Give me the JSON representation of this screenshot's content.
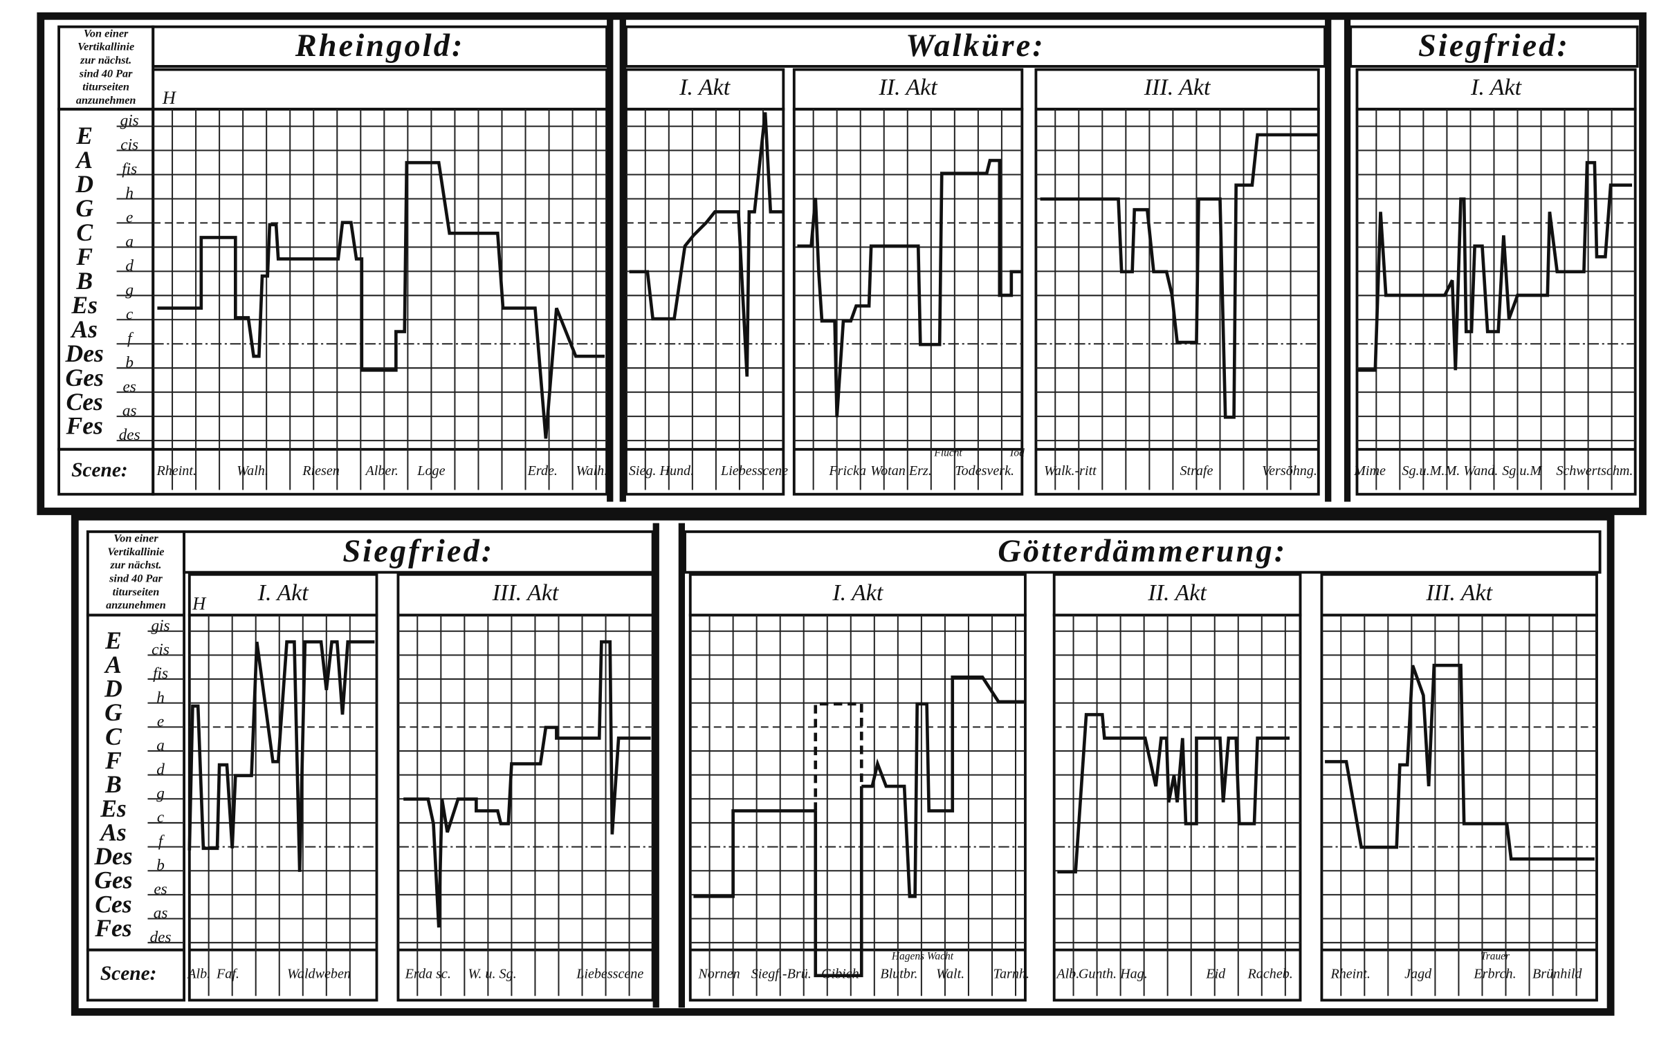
{
  "panels": [
    {
      "note": [
        "Von einer",
        "Vertikallinie",
        "zur nächst.",
        "sind 40 Par",
        "titurseiten",
        "anzunehmen"
      ],
      "h_label": "H",
      "scene_label": "Scene:",
      "keys": [
        "E",
        "A",
        "D",
        "G",
        "C",
        "F",
        "B",
        "Es",
        "As",
        "Des",
        "Ges",
        "Ces",
        "Fes"
      ],
      "pitches": [
        "gis",
        "cis",
        "fis",
        "h",
        "e",
        "a",
        "d",
        "g",
        "c",
        "f",
        "b",
        "es",
        "as",
        "des"
      ],
      "works": [
        "Rheingold:",
        "Walküre:",
        "Siegfried:"
      ],
      "acts": [
        "I. Akt",
        "II. Akt",
        "III. Akt",
        "I. Akt"
      ],
      "scenes": [
        "Rheint.",
        "Walh.",
        "Riesen",
        "Alber.",
        "Loge",
        "Erde.",
        "Walh.",
        "Sieg. Hund.",
        "Liebesscene",
        "Fricka",
        "Wotan Erz.",
        "Flucht",
        "Todesverk.",
        "Tod",
        "Walk.-ritt",
        "Strafe",
        "Versöhng.",
        "Mime",
        "Sg.u.M.",
        "M. Wand.",
        "Sg.u.M",
        "Schwertschm."
      ]
    },
    {
      "note": [
        "Von einer",
        "Vertikallinie",
        "zur nächst.",
        "sind 40 Par",
        "titurseiten",
        "anzunehmen"
      ],
      "h_label": "H",
      "scene_label": "Scene:",
      "keys": [
        "E",
        "A",
        "D",
        "G",
        "C",
        "F",
        "B",
        "Es",
        "As",
        "Des",
        "Ges",
        "Ces",
        "Fes"
      ],
      "pitches": [
        "gis",
        "cis",
        "fis",
        "h",
        "e",
        "a",
        "d",
        "g",
        "c",
        "f",
        "b",
        "es",
        "as",
        "des"
      ],
      "works": [
        "Siegfried:",
        "Götterdämmerung:"
      ],
      "acts": [
        "I. Akt",
        "III. Akt",
        "I. Akt",
        "II. Akt",
        "III. Akt"
      ],
      "scenes": [
        "Alb.",
        "Faf.",
        "Waldweben",
        "Erda sc.",
        "W. u. Sg.",
        "Liebesscene",
        "Nornen",
        "Siegf.-Brü.",
        "Gibich",
        "Blutbr.",
        "Hagens Wacht",
        "Walt.",
        "Tarnh.",
        "Alb.",
        "Gunth. Hag.",
        "Eid",
        "Racheb.",
        "Rheint.",
        "Jagd",
        "Trauer",
        "Erbrch.",
        "Brünhild"
      ]
    }
  ]
}
